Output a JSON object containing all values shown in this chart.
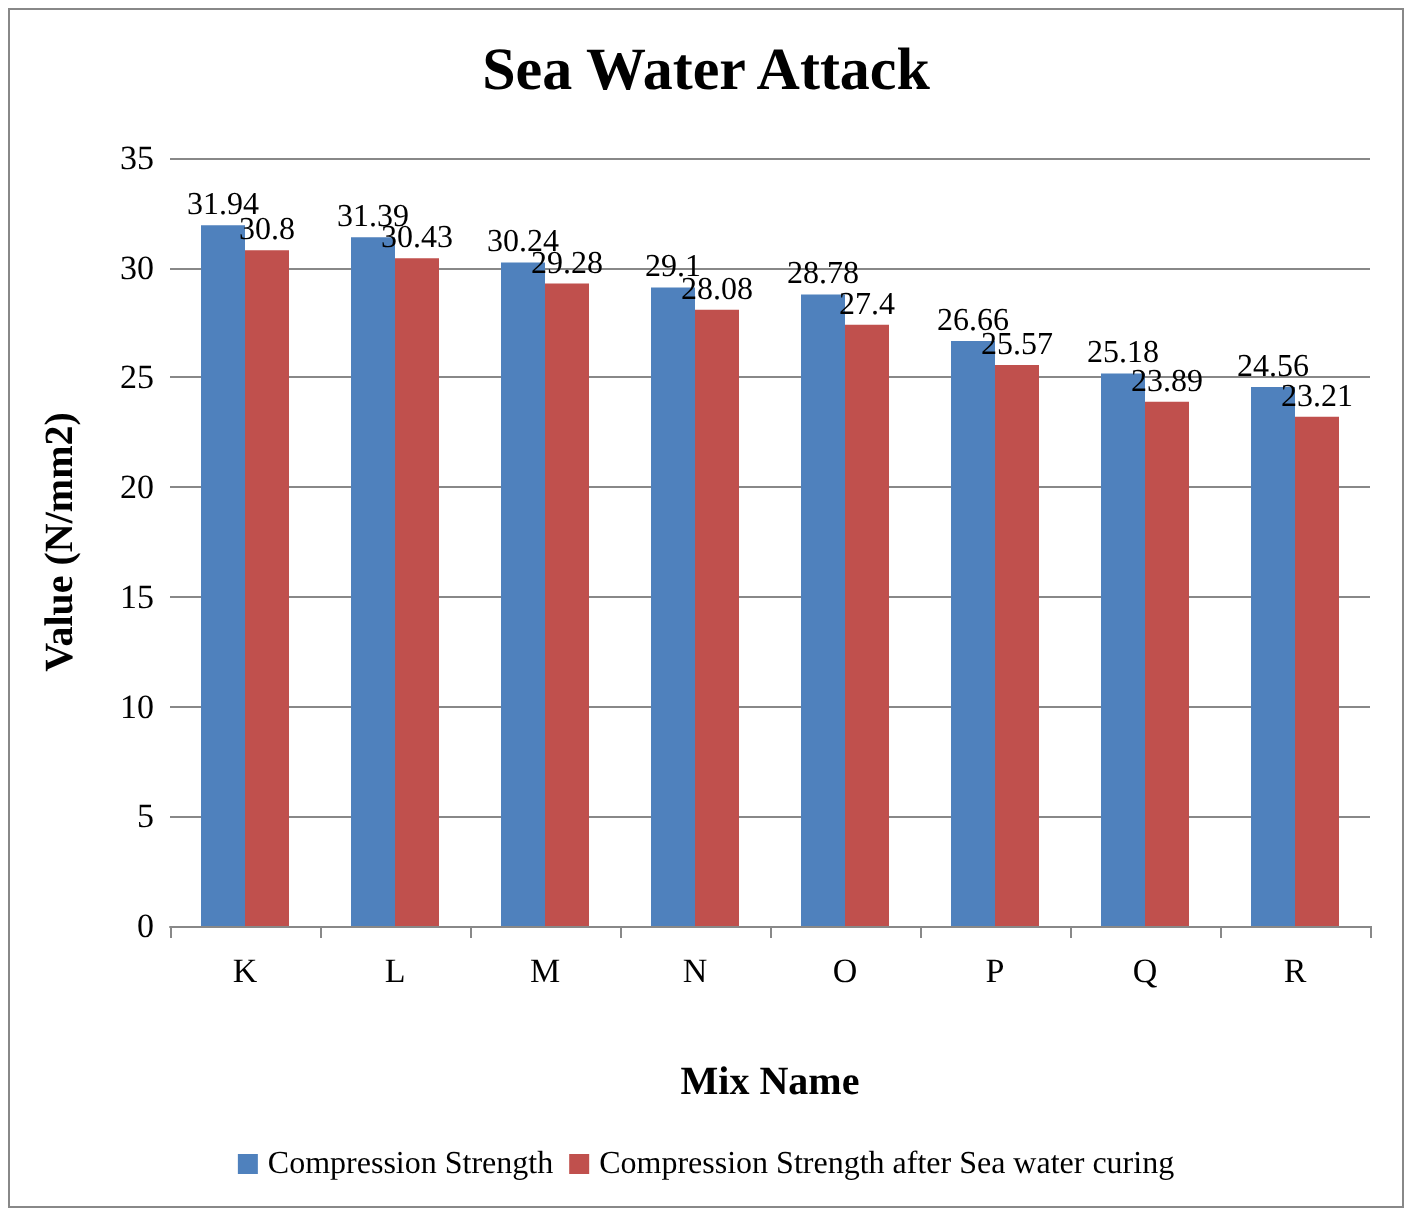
{
  "chart_data": {
    "type": "bar",
    "title": "Sea Water Attack",
    "xlabel": "Mix Name",
    "ylabel": "Value (N/mm2)",
    "categories": [
      "K",
      "L",
      "M",
      "N",
      "O",
      "P",
      "Q",
      "R"
    ],
    "series": [
      {
        "name": "Compression Strength",
        "color": "#4f81bd",
        "values": [
          31.94,
          31.39,
          30.24,
          29.1,
          28.78,
          26.66,
          25.18,
          24.56
        ]
      },
      {
        "name": "Compression Strength after Sea water curing",
        "color": "#c0504d",
        "values": [
          30.8,
          30.43,
          29.28,
          28.08,
          27.4,
          25.57,
          23.89,
          23.21
        ]
      }
    ],
    "ylim": [
      0,
      35
    ],
    "yticks": [
      0,
      5,
      10,
      15,
      20,
      25,
      30,
      35
    ],
    "grid": "y",
    "legend": "bottom",
    "data_labels": true
  }
}
